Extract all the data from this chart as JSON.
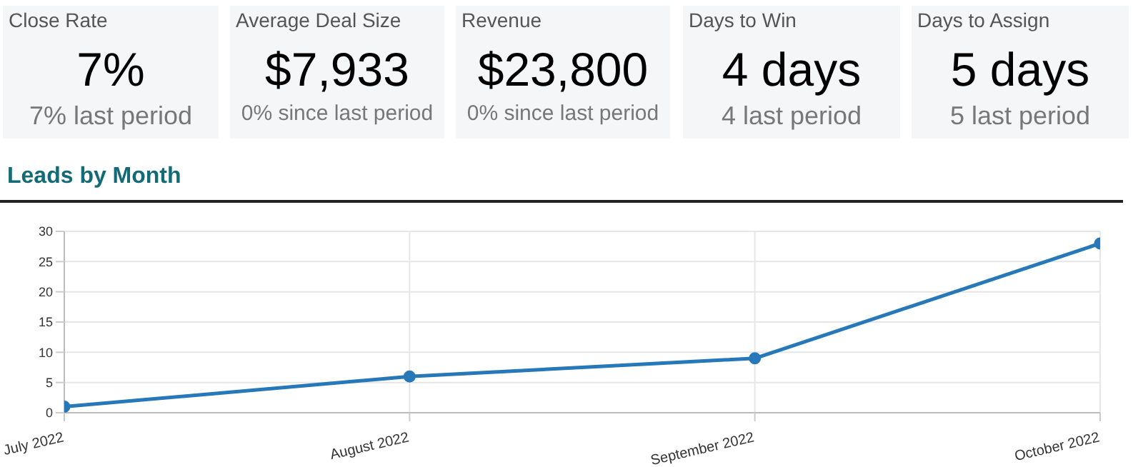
{
  "chart_data": [
    {
      "type": "other",
      "title": "Close Rate",
      "annotations": [
        "7%",
        "7% last period"
      ]
    },
    {
      "type": "other",
      "title": "Average Deal Size",
      "annotations": [
        "$7,933",
        "0% since last period"
      ]
    },
    {
      "type": "other",
      "title": "Revenue",
      "annotations": [
        "$23,800",
        "0% since last period"
      ]
    },
    {
      "type": "other",
      "title": "Days to Win",
      "annotations": [
        "4 days",
        "4 last period"
      ]
    },
    {
      "type": "other",
      "title": "Days to Assign",
      "annotations": [
        "5 days",
        "5 last period"
      ]
    },
    {
      "type": "line",
      "title": "Leads by Month",
      "categories": [
        "July 2022",
        "August 2022",
        "September 2022",
        "October 2022"
      ],
      "values": [
        1,
        6,
        9,
        28
      ],
      "color": "#2778b8",
      "ylim": [
        0,
        30
      ],
      "yticks": [
        0,
        5,
        10,
        15,
        20,
        25,
        30
      ],
      "grid": true,
      "marker": "circle"
    }
  ]
}
